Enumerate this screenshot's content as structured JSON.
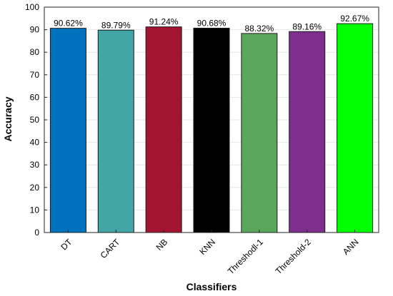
{
  "chart_data": {
    "type": "bar",
    "title": "",
    "xlabel": "Classifiers",
    "ylabel": "Accuracy",
    "ylim": [
      0,
      100
    ],
    "yticks": [
      0,
      10,
      20,
      30,
      40,
      50,
      60,
      70,
      80,
      90,
      100
    ],
    "grid": true,
    "categories": [
      "DT",
      "CART",
      "NB",
      "KNN",
      "Threshodl-1",
      "Threshold-2",
      "ANN"
    ],
    "values": [
      90.62,
      89.79,
      91.24,
      90.68,
      88.32,
      89.16,
      92.67
    ],
    "data_labels": [
      "90.62%",
      "89.79%",
      "91.24%",
      "90.68%",
      "88.32%",
      "89.16%",
      "92.67%"
    ],
    "colors": [
      "#0072bd",
      "#42a5a6",
      "#a2142f",
      "#000000",
      "#5aa65a",
      "#7e2f8e",
      "#00ff00"
    ]
  }
}
